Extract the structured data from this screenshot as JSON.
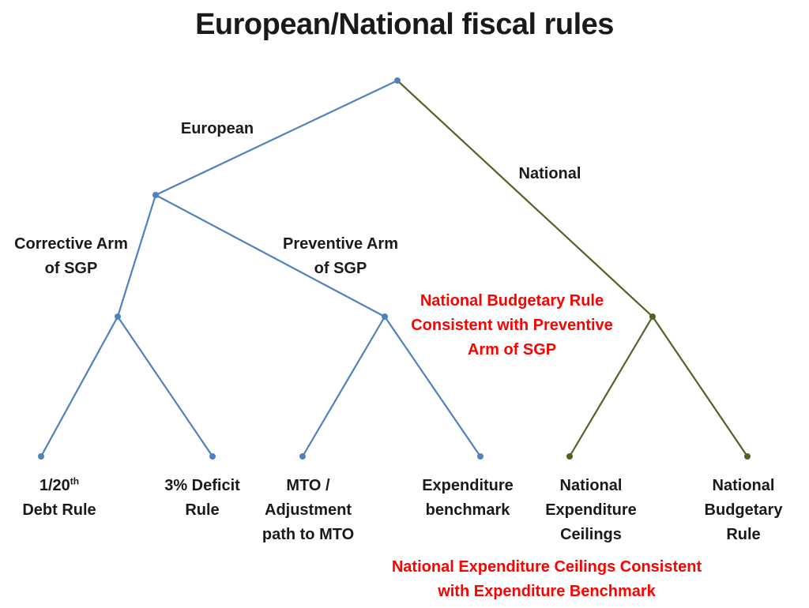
{
  "title": "European/National fiscal rules",
  "colors": {
    "european_branch": "#4f81bd",
    "national_branch": "#4f6228",
    "highlight_text": "#ff0000"
  },
  "branches": {
    "european": "European",
    "national": "National",
    "corrective": [
      "Corrective Arm",
      "of SGP"
    ],
    "preventive": [
      "Preventive Arm",
      "of SGP"
    ]
  },
  "leaves": {
    "debt_rule": {
      "line1_base": "1/20",
      "line1_sup": "th",
      "line2": "Debt Rule"
    },
    "deficit_rule": [
      "3% Deficit",
      "Rule"
    ],
    "mto": [
      "MTO /",
      "Adjustment",
      "path to MTO"
    ],
    "expenditure_benchmark": [
      "Expenditure",
      "benchmark"
    ],
    "national_expenditure_ceilings": [
      "National",
      "Expenditure",
      "Ceilings"
    ],
    "national_budgetary_rule": [
      "National",
      "Budgetary",
      "Rule"
    ]
  },
  "annotations": {
    "budgetary_consistency": [
      "National Budgetary Rule",
      "Consistent with Preventive",
      "Arm of SGP"
    ],
    "ceilings_consistency": [
      "National Expenditure Ceilings Consistent",
      "with Expenditure Benchmark"
    ]
  }
}
